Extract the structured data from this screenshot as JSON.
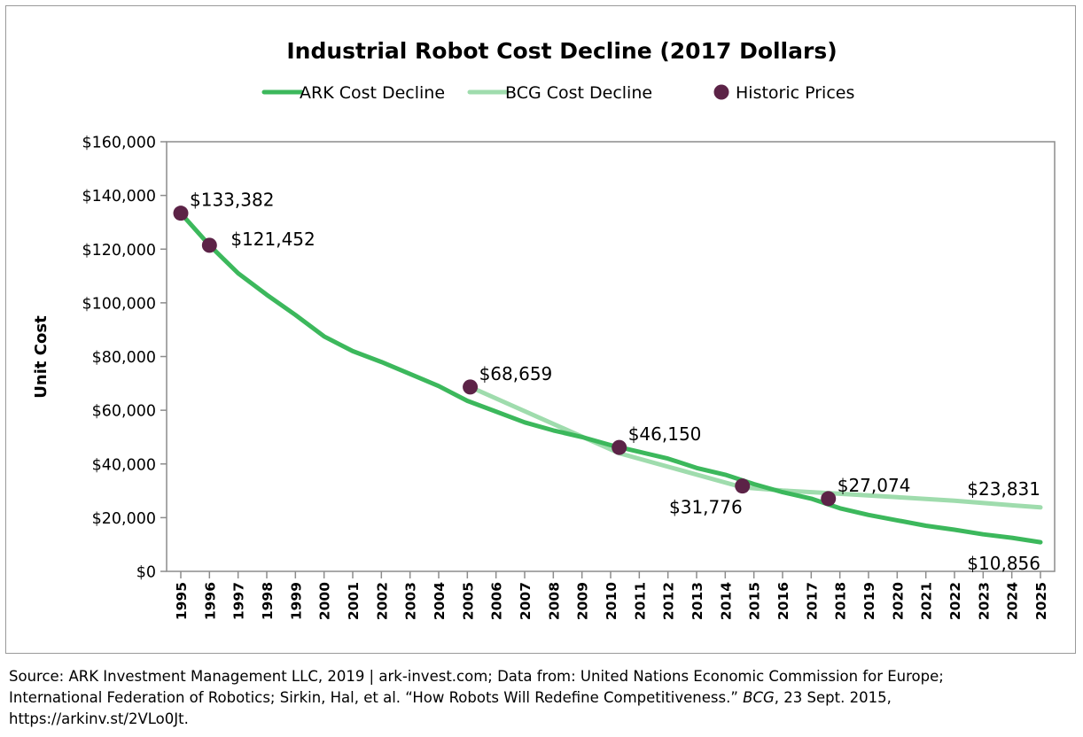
{
  "chart_data": {
    "type": "line",
    "title": "Industrial Robot Cost Decline (2017 Dollars)",
    "ylabel": "Unit Cost",
    "xlabel": "",
    "ylim": [
      0,
      160000
    ],
    "xlim": [
      1995,
      2025
    ],
    "y_ticks": [
      {
        "value": 0,
        "label": "$0"
      },
      {
        "value": 20000,
        "label": "$20,000"
      },
      {
        "value": 40000,
        "label": "$40,000"
      },
      {
        "value": 60000,
        "label": "$60,000"
      },
      {
        "value": 80000,
        "label": "$80,000"
      },
      {
        "value": 100000,
        "label": "$100,000"
      },
      {
        "value": 120000,
        "label": "$120,000"
      },
      {
        "value": 140000,
        "label": "$140,000"
      },
      {
        "value": 160000,
        "label": "$160,000"
      }
    ],
    "x_ticks": [
      "1995",
      "1996",
      "1997",
      "1998",
      "1999",
      "2000",
      "2001",
      "2002",
      "2003",
      "2004",
      "2005",
      "2006",
      "2007",
      "2008",
      "2009",
      "2010",
      "2011",
      "2012",
      "2013",
      "2014",
      "2015",
      "2016",
      "2017",
      "2018",
      "2019",
      "2020",
      "2021",
      "2022",
      "2023",
      "2024",
      "2025"
    ],
    "grid": false,
    "legend_position": "top",
    "series": [
      {
        "name": "ARK Cost Decline",
        "color": "#3cb85c",
        "style": "line",
        "points": [
          [
            1995,
            133382
          ],
          [
            1996,
            121452
          ],
          [
            1997,
            111000
          ],
          [
            1998,
            103000
          ],
          [
            1999,
            95500
          ],
          [
            2000,
            87500
          ],
          [
            2001,
            82000
          ],
          [
            2002,
            78000
          ],
          [
            2003,
            73500
          ],
          [
            2004,
            69000
          ],
          [
            2005,
            63500
          ],
          [
            2006,
            59500
          ],
          [
            2007,
            55500
          ],
          [
            2008,
            52500
          ],
          [
            2009,
            50000
          ],
          [
            2010,
            47000
          ],
          [
            2011,
            44500
          ],
          [
            2012,
            42000
          ],
          [
            2013,
            38500
          ],
          [
            2014,
            36000
          ],
          [
            2015,
            32500
          ],
          [
            2016,
            29500
          ],
          [
            2017,
            27074
          ],
          [
            2018,
            23500
          ],
          [
            2019,
            21000
          ],
          [
            2020,
            19000
          ],
          [
            2021,
            17000
          ],
          [
            2022,
            15500
          ],
          [
            2023,
            13800
          ],
          [
            2024,
            12500
          ],
          [
            2025,
            10856
          ]
        ]
      },
      {
        "name": "BCG Cost Decline",
        "color": "#9fdcad",
        "style": "line",
        "points": [
          [
            2005.1,
            68659
          ],
          [
            2010.3,
            44000
          ],
          [
            2014.6,
            31300
          ],
          [
            2016,
            30100
          ],
          [
            2018,
            28900
          ],
          [
            2020,
            27600
          ],
          [
            2022,
            26300
          ],
          [
            2024,
            24600
          ],
          [
            2025,
            23831
          ]
        ]
      },
      {
        "name": "Historic Prices",
        "color": "#5c2347",
        "style": "points",
        "points": [
          [
            1995,
            133382
          ],
          [
            1996,
            121452
          ],
          [
            2005.1,
            68659
          ],
          [
            2010.3,
            46150
          ],
          [
            2014.6,
            31776
          ],
          [
            2017.6,
            27074
          ]
        ]
      }
    ],
    "annotations": [
      {
        "text": "$133,382",
        "x": 1995,
        "y": 133382,
        "pos": "above-right"
      },
      {
        "text": "$121,452",
        "x": 1996,
        "y": 121452,
        "pos": "right"
      },
      {
        "text": "$68,659",
        "x": 2005.1,
        "y": 68659,
        "pos": "above-right"
      },
      {
        "text": "$46,150",
        "x": 2010.3,
        "y": 46150,
        "pos": "above-right"
      },
      {
        "text": "$31,776",
        "x": 2014.6,
        "y": 31776,
        "pos": "below-left"
      },
      {
        "text": "$27,074",
        "x": 2017.6,
        "y": 27074,
        "pos": "above-right"
      },
      {
        "text": "$23,831",
        "x": 2025,
        "y": 23831,
        "pos": "above-left"
      },
      {
        "text": "$10,856",
        "x": 2025,
        "y": 10856,
        "pos": "below-left"
      }
    ]
  },
  "source": {
    "line1": "Source: ARK Investment Management LLC, 2019 | ark-invest.com;  Data from: United Nations Economic Commission for Europe;",
    "line2_pre": "International Federation of Robotics; Sirkin, Hal, et al. “How Robots Will Redefine Competitiveness.” ",
    "line2_italic": "BCG",
    "line2_post": ", 23 Sept. 2015,",
    "line3": "https://arkinv.st/2VLo0Jt."
  }
}
